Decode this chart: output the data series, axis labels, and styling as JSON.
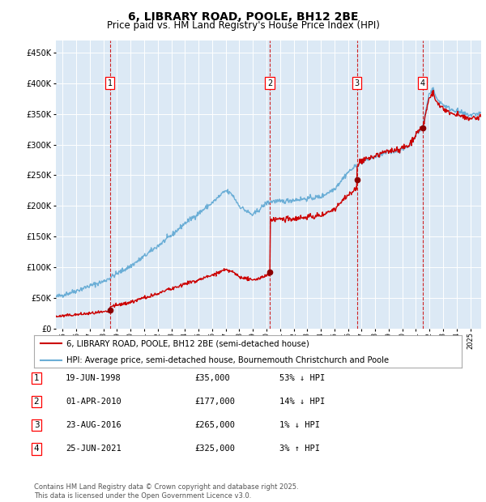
{
  "title": "6, LIBRARY ROAD, POOLE, BH12 2BE",
  "subtitle": "Price paid vs. HM Land Registry's House Price Index (HPI)",
  "title_fontsize": 10,
  "subtitle_fontsize": 8.5,
  "background_color": "#ffffff",
  "plot_bg_color": "#dce9f5",
  "legend_line1": "6, LIBRARY ROAD, POOLE, BH12 2BE (semi-detached house)",
  "legend_line2": "HPI: Average price, semi-detached house, Bournemouth Christchurch and Poole",
  "footer": "Contains HM Land Registry data © Crown copyright and database right 2025.\nThis data is licensed under the Open Government Licence v3.0.",
  "purchases": [
    {
      "label": "1",
      "date_str": "19-JUN-1998",
      "year": 1998.47,
      "price": 35000,
      "pct": "53%",
      "dir": "↓"
    },
    {
      "label": "2",
      "date_str": "01-APR-2010",
      "year": 2010.25,
      "price": 177000,
      "pct": "14%",
      "dir": "↓"
    },
    {
      "label": "3",
      "date_str": "23-AUG-2016",
      "year": 2016.65,
      "price": 265000,
      "pct": "1%",
      "dir": "↓"
    },
    {
      "label": "4",
      "date_str": "25-JUN-2021",
      "year": 2021.48,
      "price": 325000,
      "pct": "3%",
      "dir": "↑"
    }
  ],
  "ylim": [
    0,
    470000
  ],
  "xlim_start": 1994.5,
  "xlim_end": 2025.8,
  "hpi_color": "#6baed6",
  "price_color": "#cc0000",
  "purchase_dot_color": "#8b0000",
  "vline_color": "#cc0000",
  "table_rows": [
    [
      "1",
      "19-JUN-1998",
      "£35,000",
      "53% ↓ HPI"
    ],
    [
      "2",
      "01-APR-2010",
      "£177,000",
      "14% ↓ HPI"
    ],
    [
      "3",
      "23-AUG-2016",
      "£265,000",
      "1% ↓ HPI"
    ],
    [
      "4",
      "25-JUN-2021",
      "£325,000",
      "3% ↑ HPI"
    ]
  ]
}
